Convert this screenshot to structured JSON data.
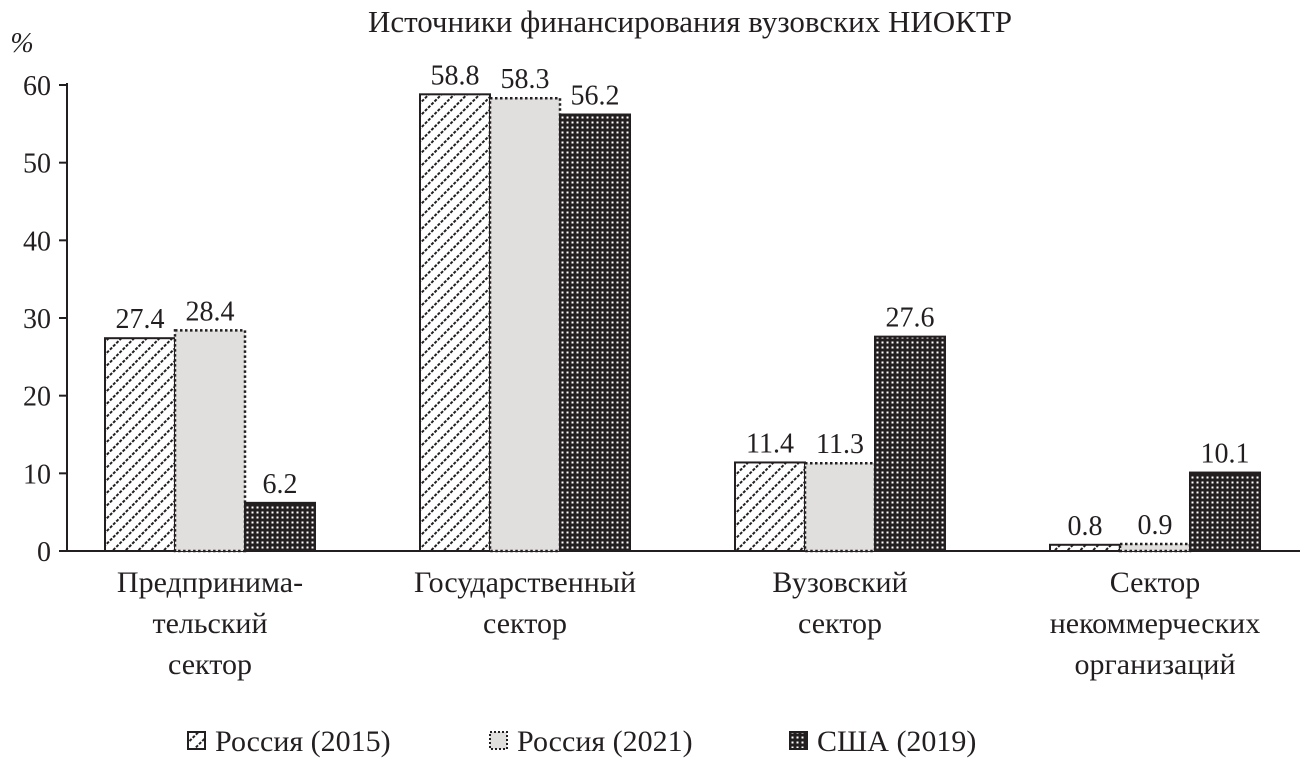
{
  "chart_data": {
    "type": "bar",
    "title": "Источники финансирования вузовских НИОКТР",
    "ylabel": "%",
    "xlabel": "",
    "ylim": [
      0,
      60
    ],
    "yticks": [
      0,
      10,
      20,
      30,
      40,
      50,
      60
    ],
    "grid": false,
    "legend_position": "bottom",
    "categories": [
      [
        "Предпринима-",
        "тельский",
        "сектор"
      ],
      [
        "Государственный",
        "сектор"
      ],
      [
        "Вузовский",
        "сектор"
      ],
      [
        "Сектор",
        "некоммерческих",
        "организаций"
      ]
    ],
    "series": [
      {
        "name": "Россия (2015)",
        "values": [
          27.4,
          58.8,
          11.4,
          0.8
        ],
        "pattern": "diagonal-hatch",
        "color": "#231f20"
      },
      {
        "name": "Россия (2021)",
        "values": [
          28.4,
          58.3,
          11.3,
          0.9
        ],
        "pattern": "light-gray-dotted-border",
        "color": "#e0dfdd"
      },
      {
        "name": "США (2019)",
        "values": [
          6.2,
          56.2,
          27.6,
          10.1
        ],
        "pattern": "black-dotted",
        "color": "#231f20"
      }
    ]
  }
}
